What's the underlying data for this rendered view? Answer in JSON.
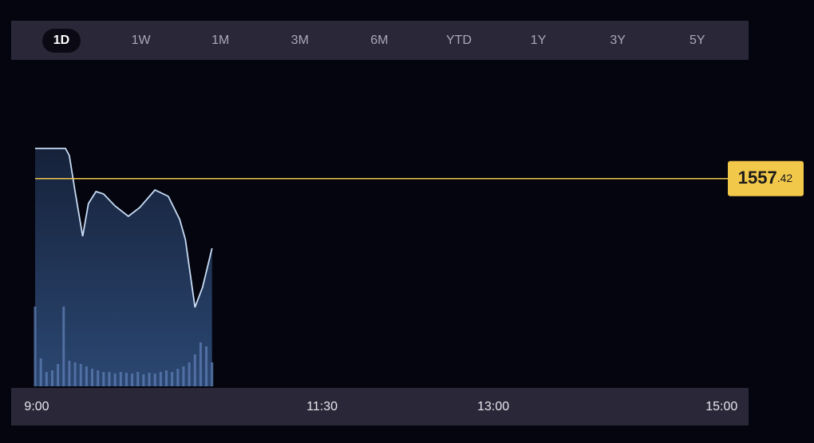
{
  "tabs": [
    "1D",
    "1W",
    "1M",
    "3M",
    "6M",
    "YTD",
    "1Y",
    "3Y",
    "5Y"
  ],
  "selected_tab": 0,
  "chart_data": {
    "type": "line",
    "x": [
      0,
      16,
      18,
      21,
      25,
      28,
      32,
      36,
      42,
      49,
      55,
      63,
      70,
      76,
      79,
      84,
      88,
      93
    ],
    "series": [
      {
        "color": "#c7dcf5",
        "values": [
          1561.2,
          1561.2,
          1560.3,
          1555.8,
          1550.2,
          1554.3,
          1555.8,
          1555.5,
          1554.0,
          1552.7,
          1553.8,
          1556.0,
          1555.2,
          1552.3,
          1549.8,
          1541.3,
          1543.8,
          1548.7
        ]
      }
    ],
    "xlim": [
      0,
      375
    ],
    "xticks": [
      {
        "value": 0,
        "label": "9:00"
      },
      {
        "value": 150,
        "label": "11:30"
      },
      {
        "value": 240,
        "label": "13:00"
      },
      {
        "value": 360,
        "label": "15:00"
      }
    ],
    "ylim": [
      1531.4,
      1570.8
    ],
    "reference_price": 1557.42,
    "reference_color": "#f2c84b",
    "volume": {
      "color": "#5b7bb0",
      "x": [
        0,
        3,
        6,
        9,
        12,
        15,
        18,
        21,
        24,
        27,
        30,
        33,
        36,
        39,
        42,
        45,
        48,
        51,
        54,
        57,
        60,
        63,
        66,
        69,
        72,
        75,
        78,
        81,
        84,
        87,
        90,
        93
      ],
      "values": [
        100,
        35,
        18,
        20,
        28,
        100,
        32,
        30,
        28,
        25,
        22,
        20,
        18,
        18,
        16,
        18,
        17,
        16,
        18,
        15,
        17,
        16,
        18,
        20,
        18,
        22,
        25,
        30,
        40,
        55,
        50,
        30
      ],
      "vlim": [
        0,
        394
      ]
    }
  }
}
